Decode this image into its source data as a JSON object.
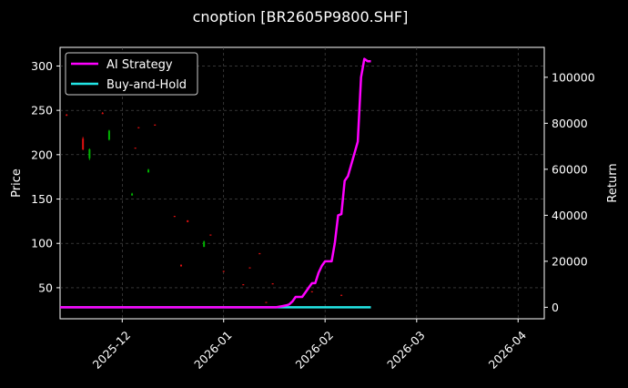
{
  "chart_data": {
    "type": "line",
    "title": "cnoption [BR2605P9800.SHF]",
    "xlabel": "",
    "ylabel": "Price",
    "y2label": "Return",
    "xlim": [
      "2025-11-12",
      "2026-04-09"
    ],
    "ylim": [
      15,
      321
    ],
    "y2lim": [
      -5000,
      113000
    ],
    "x_ticks": [
      {
        "date": "2025-12-01",
        "label": "2025-12"
      },
      {
        "date": "2026-01-01",
        "label": "2026-01"
      },
      {
        "date": "2026-02-01",
        "label": "2026-02"
      },
      {
        "date": "2026-03-01",
        "label": "2026-03"
      },
      {
        "date": "2026-04-01",
        "label": "2026-04"
      }
    ],
    "y_ticks": [
      50,
      100,
      150,
      200,
      250,
      300
    ],
    "y2_ticks": [
      {
        "value": 0,
        "label": "0"
      },
      {
        "value": 20000,
        "label": "20000"
      },
      {
        "value": 40000,
        "label": "40000"
      },
      {
        "value": 60000,
        "label": "60000"
      },
      {
        "value": 80000,
        "label": "80000"
      },
      {
        "value": 100000,
        "label": "100000"
      }
    ],
    "grid": true,
    "legend_position": "top-left",
    "candles": [
      {
        "date": "2025-11-14",
        "open": 245,
        "close": 244,
        "high": 246,
        "low": 244
      },
      {
        "date": "2025-11-19",
        "open": 218,
        "close": 206,
        "high": 220,
        "low": 205
      },
      {
        "date": "2025-11-21",
        "open": 196,
        "close": 206,
        "high": 207,
        "low": 194
      },
      {
        "date": "2025-11-25",
        "open": 247,
        "close": 246,
        "high": 248,
        "low": 246
      },
      {
        "date": "2025-11-27",
        "open": 217,
        "close": 227,
        "high": 228,
        "low": 216
      },
      {
        "date": "2025-12-04",
        "open": 154,
        "close": 156,
        "high": 157,
        "low": 154
      },
      {
        "date": "2025-12-05",
        "open": 208,
        "close": 207,
        "high": 208,
        "low": 207
      },
      {
        "date": "2025-12-06",
        "open": 231,
        "close": 230,
        "high": 231,
        "low": 230
      },
      {
        "date": "2025-12-09",
        "open": 180,
        "close": 183,
        "high": 184,
        "low": 180
      },
      {
        "date": "2025-12-11",
        "open": 234,
        "close": 233,
        "high": 234,
        "low": 233
      },
      {
        "date": "2025-12-17",
        "open": 131,
        "close": 130,
        "high": 131,
        "low": 130
      },
      {
        "date": "2025-12-19",
        "open": 76,
        "close": 74,
        "high": 76,
        "low": 74
      },
      {
        "date": "2025-12-21",
        "open": 126,
        "close": 124,
        "high": 126,
        "low": 124
      },
      {
        "date": "2025-12-26",
        "open": 96,
        "close": 102,
        "high": 103,
        "low": 96
      },
      {
        "date": "2025-12-28",
        "open": 110,
        "close": 109,
        "high": 110,
        "low": 109
      },
      {
        "date": "2026-01-01",
        "open": 69,
        "close": 68,
        "high": 69,
        "low": 68
      },
      {
        "date": "2026-01-07",
        "open": 54,
        "close": 53,
        "high": 54,
        "low": 53
      },
      {
        "date": "2026-01-09",
        "open": 73,
        "close": 72,
        "high": 73,
        "low": 72
      },
      {
        "date": "2026-01-12",
        "open": 89,
        "close": 88,
        "high": 89,
        "low": 88
      },
      {
        "date": "2026-01-14",
        "open": 34,
        "close": 33,
        "high": 34,
        "low": 33
      },
      {
        "date": "2026-01-16",
        "open": 55,
        "close": 54,
        "high": 55,
        "low": 54
      },
      {
        "date": "2026-01-28",
        "open": 46,
        "close": 45,
        "high": 46,
        "low": 45
      },
      {
        "date": "2026-02-06",
        "open": 42,
        "close": 41,
        "high": 42,
        "low": 41
      }
    ],
    "series": [
      {
        "name": "AI Strategy",
        "color": "#ff00ff",
        "axis": "right",
        "points": [
          [
            "2025-11-12",
            0
          ],
          [
            "2026-01-12",
            0
          ],
          [
            "2026-01-17",
            0
          ],
          [
            "2026-01-19",
            500
          ],
          [
            "2026-01-20",
            800
          ],
          [
            "2026-01-21",
            1200
          ],
          [
            "2026-01-22",
            2500
          ],
          [
            "2026-01-23",
            4500
          ],
          [
            "2026-01-25",
            4500
          ],
          [
            "2026-01-26",
            6500
          ],
          [
            "2026-01-27",
            8500
          ],
          [
            "2026-01-28",
            10500
          ],
          [
            "2026-01-29",
            10500
          ],
          [
            "2026-01-30",
            15000
          ],
          [
            "2026-01-31",
            18000
          ],
          [
            "2026-02-01",
            20000
          ],
          [
            "2026-02-02",
            20000
          ],
          [
            "2026-02-03",
            20000
          ],
          [
            "2026-02-04",
            28000
          ],
          [
            "2026-02-05",
            40000
          ],
          [
            "2026-02-06",
            40500
          ],
          [
            "2026-02-07",
            55000
          ],
          [
            "2026-02-08",
            57000
          ],
          [
            "2026-02-09",
            62000
          ],
          [
            "2026-02-10",
            67000
          ],
          [
            "2026-02-11",
            72000
          ],
          [
            "2026-02-12",
            100000
          ],
          [
            "2026-02-13",
            108000
          ],
          [
            "2026-02-14",
            107000
          ],
          [
            "2026-02-15",
            107000
          ]
        ]
      },
      {
        "name": "Buy-and-Hold",
        "color": "#22e5e5",
        "axis": "right",
        "points": [
          [
            "2025-11-12",
            0
          ],
          [
            "2026-02-15",
            0
          ]
        ]
      }
    ]
  },
  "colors": {
    "background": "#000000",
    "up_candle": "#00b300",
    "down_candle": "#e01010",
    "grid": "#555555",
    "legend_frame": "#cccccc"
  }
}
